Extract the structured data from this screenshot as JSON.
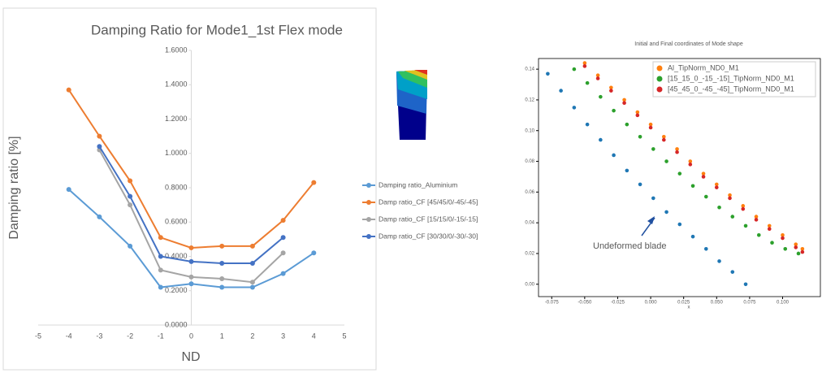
{
  "chart_data": [
    {
      "type": "line",
      "title": "Damping Ratio for Mode1_1st Flex mode",
      "xlabel": "ND",
      "ylabel": "Damping ratio [%]",
      "x": [
        -4,
        -3,
        -2,
        -1,
        0,
        1,
        2,
        3,
        4
      ],
      "series": [
        {
          "name": "Damping ratio_Aluminium",
          "color": "#5b9bd5",
          "values": [
            0.79,
            0.63,
            0.46,
            0.22,
            0.24,
            0.22,
            0.22,
            0.3,
            0.42
          ]
        },
        {
          "name": "Damp ratio_CF [45/45/0/-45/-45]",
          "color": "#ed7d31",
          "values": [
            1.37,
            1.1,
            0.84,
            0.51,
            0.45,
            0.46,
            0.46,
            0.61,
            0.83
          ]
        },
        {
          "name": "Damp ratio_CF [15/15/0/-15/-15]",
          "color": "#a5a5a5",
          "values": [
            null,
            1.02,
            0.7,
            0.32,
            0.28,
            0.27,
            0.25,
            0.42,
            null
          ]
        },
        {
          "name": "Damp ratio_CF [30/30/0/-30/-30]",
          "color": "#4472c4",
          "values": [
            null,
            1.04,
            0.75,
            0.4,
            0.37,
            0.36,
            0.36,
            0.51,
            null
          ]
        }
      ],
      "xlim": [
        -5,
        5
      ],
      "xticks": [
        -5,
        -4,
        -3,
        -2,
        -1,
        0,
        1,
        2,
        3,
        4,
        5
      ],
      "ylim": [
        0,
        1.6
      ],
      "yticks": [
        {
          "value": 0,
          "label": "0.0000"
        },
        {
          "value": 0.2,
          "label": "0.2000"
        },
        {
          "value": 0.4,
          "label": "0.4000"
        },
        {
          "value": 0.6,
          "label": "0.6000"
        },
        {
          "value": 0.8,
          "label": "0.8000"
        },
        {
          "value": 1.0,
          "label": "1.0000"
        },
        {
          "value": 1.2,
          "label": "1.2000"
        },
        {
          "value": 1.4,
          "label": "1.4000"
        },
        {
          "value": 1.6,
          "label": "1.6000"
        }
      ],
      "legend": "right",
      "grid": false
    },
    {
      "type": "scatter",
      "title": "Initial and Final coordinates of Mode shape",
      "xlabel": "x",
      "annotation": "Undeformed blade",
      "series": [
        {
          "color": "#1f77b4",
          "x": [
            -0.078,
            -0.068,
            -0.058,
            -0.048,
            -0.038,
            -0.028,
            -0.018,
            -0.008,
            0.002,
            0.012,
            0.022,
            0.032,
            0.042,
            0.052,
            0.062,
            0.072
          ],
          "values": [
            0.137,
            0.126,
            0.115,
            0.104,
            0.094,
            0.084,
            0.074,
            0.065,
            0.056,
            0.047,
            0.039,
            0.031,
            0.023,
            0.015,
            0.008,
            0.0
          ]
        },
        {
          "name": "Al_TipNorm_ND0_M1",
          "color": "#ff7f0e",
          "x": [
            -0.05,
            -0.04,
            -0.03,
            -0.02,
            -0.01,
            0,
            0.01,
            0.02,
            0.03,
            0.04,
            0.05,
            0.06,
            0.07,
            0.08,
            0.09,
            0.1,
            0.11,
            0.115
          ],
          "values": [
            0.144,
            0.136,
            0.128,
            0.12,
            0.112,
            0.104,
            0.096,
            0.088,
            0.08,
            0.072,
            0.065,
            0.058,
            0.051,
            0.044,
            0.038,
            0.032,
            0.026,
            0.023
          ]
        },
        {
          "name": "[15_15_0_-15_-15]_TipNorm_ND0_M1",
          "color": "#2ca02c",
          "x": [
            -0.058,
            -0.048,
            -0.038,
            -0.028,
            -0.018,
            -0.008,
            0.002,
            0.012,
            0.022,
            0.032,
            0.042,
            0.052,
            0.062,
            0.072,
            0.082,
            0.092,
            0.102,
            0.112
          ],
          "values": [
            0.14,
            0.131,
            0.122,
            0.113,
            0.104,
            0.096,
            0.088,
            0.08,
            0.072,
            0.064,
            0.057,
            0.05,
            0.044,
            0.038,
            0.032,
            0.027,
            0.023,
            0.02
          ]
        },
        {
          "name": "[45_45_0_-45_-45]_TipNorm_ND0_M1",
          "color": "#d62728",
          "x": [
            -0.05,
            -0.04,
            -0.03,
            -0.02,
            -0.01,
            0,
            0.01,
            0.02,
            0.03,
            0.04,
            0.05,
            0.06,
            0.07,
            0.08,
            0.09,
            0.1,
            0.11,
            0.115
          ],
          "values": [
            0.142,
            0.134,
            0.126,
            0.118,
            0.11,
            0.102,
            0.094,
            0.086,
            0.078,
            0.07,
            0.063,
            0.056,
            0.049,
            0.042,
            0.036,
            0.03,
            0.024,
            0.021
          ]
        }
      ],
      "xlim": [
        -0.085,
        0.12
      ],
      "xticks": [
        -0.075,
        {
          "value": -0.05,
          "label": "-0.050"
        },
        -0.025,
        {
          "value": 0,
          "label": "0.000"
        },
        0.025,
        {
          "value": 0.05,
          "label": "0.050"
        },
        0.075,
        {
          "value": 0.1,
          "label": "0.100"
        }
      ],
      "ylim": [
        -0.007,
        0.148
      ],
      "yticks": [
        {
          "value": 0,
          "label": "0.00"
        },
        0.02,
        0.04,
        0.06,
        0.08,
        {
          "value": 0.1,
          "label": "0.10"
        },
        0.12,
        0.14
      ],
      "legend": "upper right",
      "grid": false
    }
  ]
}
